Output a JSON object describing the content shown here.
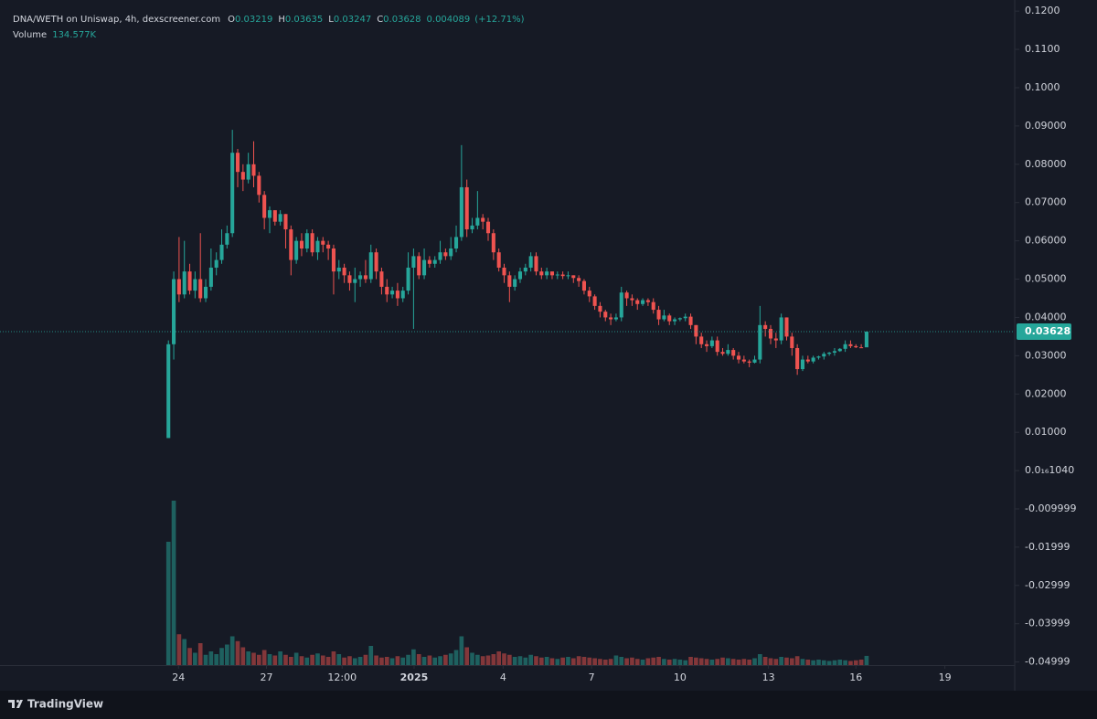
{
  "chart_data": {
    "type": "candlestick",
    "title": "DNA/WETH on Uniswap, 4h, dexscreener.com",
    "ohlc_prefixes": {
      "open": "O",
      "high": "H",
      "low": "L",
      "close": "C"
    },
    "change": 0.004089,
    "change_pct": {
      "value": 12.71,
      "label": "(+12.71%)"
    },
    "branding": "TradingView",
    "up_color": "#26a69a",
    "down_color": "#ef5350",
    "grid": false,
    "open": [
      0.0085,
      0.033,
      0.05,
      0.046,
      0.052,
      0.047,
      0.05,
      0.045,
      0.048,
      0.053,
      0.055,
      0.059,
      0.062,
      0.083,
      0.078,
      0.076,
      0.08,
      0.077,
      0.072,
      0.066,
      0.068,
      0.065,
      0.067,
      0.063,
      0.055,
      0.06,
      0.058,
      0.062,
      0.057,
      0.06,
      0.059,
      0.058,
      0.052,
      0.053,
      0.051,
      0.049,
      0.05,
      0.051,
      0.05,
      0.057,
      0.052,
      0.048,
      0.046,
      0.047,
      0.045,
      0.047,
      0.053,
      0.056,
      0.051,
      0.055,
      0.054,
      0.055,
      0.057,
      0.056,
      0.058,
      0.061,
      0.074,
      0.063,
      0.064,
      0.066,
      0.065,
      0.062,
      0.057,
      0.053,
      0.051,
      0.048,
      0.05,
      0.052,
      0.053,
      0.056,
      0.052,
      0.051,
      0.052,
      0.051,
      0.0512,
      0.0508,
      0.051,
      0.0503,
      0.0495,
      0.047,
      0.0455,
      0.043,
      0.0415,
      0.04,
      0.0395,
      0.04,
      0.0465,
      0.045,
      0.0445,
      0.0435,
      0.0445,
      0.044,
      0.042,
      0.0395,
      0.0405,
      0.039,
      0.0395,
      0.0398,
      0.0402,
      0.038,
      0.035,
      0.033,
      0.0325,
      0.034,
      0.031,
      0.0305,
      0.0315,
      0.03,
      0.029,
      0.0285,
      0.0282,
      0.029,
      0.038,
      0.037,
      0.0345,
      0.034,
      0.04,
      0.035,
      0.032,
      0.0265,
      0.029,
      0.0285,
      0.0295,
      0.0298,
      0.0305,
      0.0308,
      0.0312,
      0.0318,
      0.033,
      0.0325,
      0.0322,
      0.03219
    ],
    "high": [
      0.034,
      0.052,
      0.061,
      0.06,
      0.054,
      0.052,
      0.062,
      0.05,
      0.058,
      0.057,
      0.063,
      0.064,
      0.089,
      0.084,
      0.08,
      0.083,
      0.086,
      0.078,
      0.073,
      0.069,
      0.068,
      0.068,
      0.067,
      0.064,
      0.061,
      0.062,
      0.063,
      0.063,
      0.061,
      0.061,
      0.06,
      0.059,
      0.055,
      0.054,
      0.052,
      0.053,
      0.052,
      0.055,
      0.059,
      0.058,
      0.053,
      0.05,
      0.048,
      0.049,
      0.048,
      0.057,
      0.058,
      0.057,
      0.058,
      0.056,
      0.056,
      0.06,
      0.058,
      0.061,
      0.064,
      0.085,
      0.076,
      0.066,
      0.073,
      0.067,
      0.066,
      0.063,
      0.058,
      0.054,
      0.052,
      0.051,
      0.053,
      0.054,
      0.057,
      0.057,
      0.053,
      0.053,
      0.052,
      0.052,
      0.052,
      0.052,
      0.051,
      0.051,
      0.05,
      0.048,
      0.046,
      0.044,
      0.042,
      0.041,
      0.041,
      0.048,
      0.047,
      0.046,
      0.045,
      0.045,
      0.045,
      0.045,
      0.043,
      0.042,
      0.041,
      0.04,
      0.04,
      0.041,
      0.041,
      0.038,
      0.036,
      0.034,
      0.035,
      0.035,
      0.032,
      0.033,
      0.032,
      0.031,
      0.03,
      0.029,
      0.03,
      0.043,
      0.039,
      0.038,
      0.036,
      0.041,
      0.04,
      0.036,
      0.033,
      0.03,
      0.03,
      0.03,
      0.03,
      0.031,
      0.031,
      0.032,
      0.032,
      0.034,
      0.034,
      0.033,
      0.033,
      0.03635
    ],
    "low": [
      0.0085,
      0.029,
      0.044,
      0.045,
      0.046,
      0.045,
      0.044,
      0.044,
      0.047,
      0.051,
      0.054,
      0.058,
      0.061,
      0.074,
      0.073,
      0.075,
      0.074,
      0.07,
      0.063,
      0.062,
      0.064,
      0.064,
      0.058,
      0.051,
      0.054,
      0.056,
      0.057,
      0.056,
      0.055,
      0.057,
      0.055,
      0.046,
      0.05,
      0.049,
      0.047,
      0.044,
      0.048,
      0.049,
      0.049,
      0.05,
      0.046,
      0.044,
      0.045,
      0.043,
      0.044,
      0.046,
      0.037,
      0.05,
      0.05,
      0.053,
      0.053,
      0.054,
      0.055,
      0.055,
      0.057,
      0.06,
      0.061,
      0.062,
      0.063,
      0.063,
      0.06,
      0.055,
      0.052,
      0.049,
      0.044,
      0.047,
      0.049,
      0.051,
      0.052,
      0.051,
      0.05,
      0.05,
      0.05,
      0.05,
      0.05,
      0.05,
      0.049,
      0.048,
      0.046,
      0.044,
      0.042,
      0.04,
      0.039,
      0.038,
      0.039,
      0.039,
      0.043,
      0.043,
      0.042,
      0.043,
      0.043,
      0.041,
      0.038,
      0.039,
      0.038,
      0.038,
      0.039,
      0.039,
      0.037,
      0.033,
      0.032,
      0.031,
      0.032,
      0.03,
      0.03,
      0.03,
      0.029,
      0.028,
      0.028,
      0.027,
      0.028,
      0.028,
      0.035,
      0.033,
      0.032,
      0.033,
      0.034,
      0.03,
      0.025,
      0.026,
      0.028,
      0.028,
      0.029,
      0.029,
      0.03,
      0.03,
      0.031,
      0.031,
      0.032,
      0.032,
      0.032,
      0.03247
    ],
    "close": [
      0.033,
      0.05,
      0.046,
      0.052,
      0.047,
      0.05,
      0.045,
      0.048,
      0.053,
      0.055,
      0.059,
      0.062,
      0.083,
      0.078,
      0.076,
      0.08,
      0.077,
      0.072,
      0.066,
      0.068,
      0.065,
      0.067,
      0.063,
      0.055,
      0.06,
      0.058,
      0.062,
      0.057,
      0.06,
      0.059,
      0.058,
      0.052,
      0.053,
      0.051,
      0.049,
      0.05,
      0.051,
      0.05,
      0.057,
      0.052,
      0.048,
      0.046,
      0.047,
      0.045,
      0.047,
      0.053,
      0.056,
      0.051,
      0.055,
      0.054,
      0.055,
      0.057,
      0.056,
      0.058,
      0.061,
      0.074,
      0.063,
      0.064,
      0.066,
      0.065,
      0.062,
      0.057,
      0.053,
      0.051,
      0.048,
      0.05,
      0.052,
      0.053,
      0.056,
      0.052,
      0.051,
      0.052,
      0.051,
      0.0512,
      0.0508,
      0.051,
      0.0503,
      0.0495,
      0.047,
      0.0455,
      0.043,
      0.0415,
      0.04,
      0.0395,
      0.04,
      0.0465,
      0.045,
      0.0445,
      0.0435,
      0.0445,
      0.044,
      0.042,
      0.0395,
      0.0405,
      0.039,
      0.0395,
      0.0398,
      0.0402,
      0.038,
      0.035,
      0.033,
      0.0325,
      0.034,
      0.031,
      0.0305,
      0.0315,
      0.03,
      0.029,
      0.0285,
      0.0282,
      0.029,
      0.038,
      0.037,
      0.0345,
      0.034,
      0.04,
      0.035,
      0.032,
      0.0265,
      0.029,
      0.0285,
      0.0295,
      0.0298,
      0.0305,
      0.0308,
      0.0312,
      0.0318,
      0.033,
      0.0325,
      0.0322,
      0.03219,
      0.03628
    ],
    "volume": {
      "name": "Volume",
      "last_label": "134.577K",
      "vlim": [
        0,
        2400
      ],
      "values": [
        1800,
        2400,
        450,
        380,
        250,
        180,
        320,
        150,
        200,
        160,
        250,
        300,
        420,
        350,
        260,
        200,
        180,
        150,
        220,
        160,
        140,
        200,
        150,
        120,
        180,
        130,
        110,
        150,
        170,
        140,
        120,
        200,
        160,
        110,
        130,
        100,
        120,
        150,
        280,
        140,
        110,
        120,
        100,
        130,
        110,
        150,
        230,
        160,
        120,
        140,
        110,
        130,
        150,
        170,
        220,
        420,
        260,
        180,
        150,
        130,
        140,
        160,
        200,
        170,
        150,
        120,
        130,
        110,
        150,
        130,
        110,
        120,
        100,
        90,
        110,
        120,
        100,
        130,
        120,
        110,
        100,
        90,
        80,
        90,
        140,
        120,
        100,
        110,
        90,
        80,
        100,
        110,
        120,
        90,
        80,
        90,
        80,
        70,
        120,
        110,
        100,
        90,
        80,
        90,
        110,
        100,
        90,
        80,
        90,
        80,
        100,
        160,
        120,
        100,
        90,
        120,
        110,
        100,
        130,
        90,
        80,
        70,
        80,
        70,
        60,
        70,
        80,
        70,
        60,
        70,
        80,
        134.577
      ]
    },
    "xlim": [
      -31.6,
      158.8
    ],
    "xticks": [
      {
        "value": 1.9,
        "label": "24"
      },
      {
        "value": 18.4,
        "label": "27"
      },
      {
        "value": 32.6,
        "label": "12:00"
      },
      {
        "value": 46.1,
        "label": "2025"
      },
      {
        "value": 62.8,
        "label": "4"
      },
      {
        "value": 79.4,
        "label": "7"
      },
      {
        "value": 96.0,
        "label": "10"
      },
      {
        "value": 112.6,
        "label": "13"
      },
      {
        "value": 129.0,
        "label": "16"
      },
      {
        "value": 145.7,
        "label": "19"
      }
    ],
    "ylim": [
      -0.0508,
      0.1229
    ],
    "yticks": [
      {
        "value": 0.12,
        "label": "0.1200"
      },
      {
        "value": 0.11,
        "label": "0.1100"
      },
      {
        "value": 0.1,
        "label": "0.1000"
      },
      {
        "value": 0.09,
        "label": "0.09000"
      },
      {
        "value": 0.08,
        "label": "0.08000"
      },
      {
        "value": 0.07,
        "label": "0.07000"
      },
      {
        "value": 0.06,
        "label": "0.06000"
      },
      {
        "value": 0.05,
        "label": "0.05000"
      },
      {
        "value": 0.04,
        "label": "0.04000"
      },
      {
        "value": 0.03,
        "label": "0.03000"
      },
      {
        "value": 0.02,
        "label": "0.02000"
      },
      {
        "value": 0.01,
        "label": "0.01000"
      },
      {
        "value": 1.04e-17,
        "label": "0.0₁₆1040"
      },
      -0.009999,
      -0.01999,
      -0.02999,
      -0.03999,
      -0.04999
    ]
  }
}
